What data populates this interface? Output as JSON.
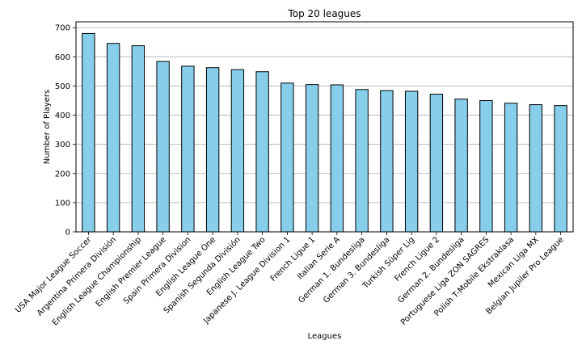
{
  "chart_data": {
    "type": "bar",
    "title": "Top 20 leagues",
    "xlabel": "Leagues",
    "ylabel": "Number of Players",
    "ylim": [
      0,
      720
    ],
    "yticks": [
      0,
      100,
      200,
      300,
      400,
      500,
      600,
      700
    ],
    "grid": "horizontal",
    "bar_color": "#87ceeb",
    "edge_color": "#000000",
    "categories": [
      "USA Major League Soccer",
      "Argentina Primera División",
      "English League Championship",
      "English Premier League",
      "Spain Primera Division",
      "English League One",
      "Spanish Segunda División",
      "English League Two",
      "Japanese J. League Division 1",
      "French Ligue 1",
      "Italian Serie A",
      "German 1. Bundesliga",
      "German 3. Bundesliga",
      "Turkish Süper Lig",
      "French Ligue 2",
      "German 2. Bundesliga",
      "Portuguese Liga ZON SAGRES",
      "Polish T-Mobile Ekstraklasa",
      "Mexican Liga MX",
      "Belgian Jupiler Pro League"
    ],
    "values": [
      680,
      646,
      638,
      584,
      568,
      563,
      556,
      549,
      510,
      505,
      504,
      488,
      484,
      482,
      472,
      455,
      450,
      441,
      436,
      433
    ]
  }
}
